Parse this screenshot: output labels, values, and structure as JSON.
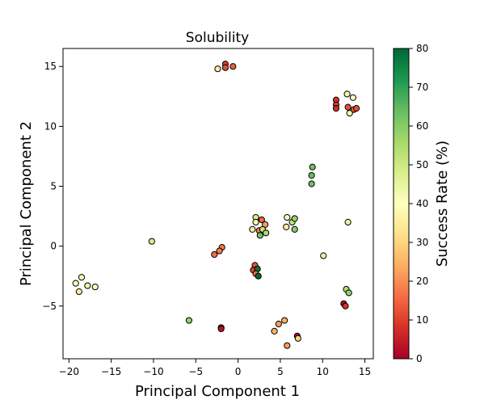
{
  "chart_data": {
    "type": "scatter",
    "title": "Solubility",
    "xlabel": "Principal Component 1",
    "ylabel": "Principal Component 2",
    "xlim": [
      -20.7,
      16.0
    ],
    "ylim": [
      -9.4,
      16.5
    ],
    "xticks": [
      -20,
      -15,
      -10,
      -5,
      0,
      5,
      10,
      15
    ],
    "yticks": [
      -5,
      0,
      5,
      10,
      15
    ],
    "grid": false,
    "legend": "none",
    "colorbar": {
      "label": "Success Rate (%)",
      "min": 0,
      "max": 80,
      "ticks": [
        0,
        10,
        20,
        30,
        40,
        50,
        60,
        70,
        80
      ],
      "colormap": "RdYlGn",
      "stops": [
        "#a50026",
        "#d73027",
        "#f46d43",
        "#fdae61",
        "#fee08b",
        "#ffffbf",
        "#d9ef8b",
        "#a6d96a",
        "#66bd63",
        "#1a9850",
        "#006837"
      ]
    },
    "points": [
      {
        "x": -1.5,
        "y": 15.2,
        "c": 10
      },
      {
        "x": -1.5,
        "y": 14.9,
        "c": 12
      },
      {
        "x": -2.4,
        "y": 14.8,
        "c": 35
      },
      {
        "x": -0.6,
        "y": 15.0,
        "c": 14
      },
      {
        "x": 11.6,
        "y": 12.2,
        "c": 8
      },
      {
        "x": 11.6,
        "y": 11.8,
        "c": 9
      },
      {
        "x": 11.6,
        "y": 11.5,
        "c": 7
      },
      {
        "x": 12.9,
        "y": 12.7,
        "c": 38
      },
      {
        "x": 13.6,
        "y": 12.4,
        "c": 40
      },
      {
        "x": 13.0,
        "y": 11.6,
        "c": 12
      },
      {
        "x": 13.2,
        "y": 11.1,
        "c": 42
      },
      {
        "x": 13.7,
        "y": 11.4,
        "c": 14
      },
      {
        "x": 14.0,
        "y": 11.5,
        "c": 12
      },
      {
        "x": 8.8,
        "y": 6.6,
        "c": 63
      },
      {
        "x": 8.7,
        "y": 5.9,
        "c": 64
      },
      {
        "x": 8.7,
        "y": 5.2,
        "c": 63
      },
      {
        "x": 2.1,
        "y": 2.4,
        "c": 48
      },
      {
        "x": 2.1,
        "y": 2.0,
        "c": 38
      },
      {
        "x": 2.8,
        "y": 2.2,
        "c": 15
      },
      {
        "x": 3.2,
        "y": 1.8,
        "c": 22
      },
      {
        "x": 1.7,
        "y": 1.4,
        "c": 35
      },
      {
        "x": 2.5,
        "y": 1.3,
        "c": 18
      },
      {
        "x": 2.9,
        "y": 1.4,
        "c": 52
      },
      {
        "x": 3.3,
        "y": 1.1,
        "c": 55
      },
      {
        "x": 2.6,
        "y": 0.9,
        "c": 62
      },
      {
        "x": 5.8,
        "y": 2.4,
        "c": 40
      },
      {
        "x": 6.4,
        "y": 2.0,
        "c": 52
      },
      {
        "x": 6.7,
        "y": 2.3,
        "c": 58
      },
      {
        "x": 5.7,
        "y": 1.6,
        "c": 36
      },
      {
        "x": 6.7,
        "y": 1.4,
        "c": 60
      },
      {
        "x": 13.0,
        "y": 2.0,
        "c": 45
      },
      {
        "x": -10.2,
        "y": 0.4,
        "c": 48
      },
      {
        "x": 10.1,
        "y": -0.8,
        "c": 45
      },
      {
        "x": -1.9,
        "y": -0.1,
        "c": 17
      },
      {
        "x": -2.2,
        "y": -0.4,
        "c": 18
      },
      {
        "x": -2.8,
        "y": -0.7,
        "c": 16
      },
      {
        "x": 2.0,
        "y": -1.6,
        "c": 12
      },
      {
        "x": 1.8,
        "y": -2.0,
        "c": 10
      },
      {
        "x": 2.3,
        "y": -1.9,
        "c": 78
      },
      {
        "x": 2.1,
        "y": -2.3,
        "c": 15
      },
      {
        "x": 2.4,
        "y": -2.5,
        "c": 80
      },
      {
        "x": -18.5,
        "y": -2.6,
        "c": 42
      },
      {
        "x": -19.2,
        "y": -3.1,
        "c": 38
      },
      {
        "x": -17.8,
        "y": -3.3,
        "c": 44
      },
      {
        "x": -16.9,
        "y": -3.4,
        "c": 40
      },
      {
        "x": -18.8,
        "y": -3.8,
        "c": 35
      },
      {
        "x": 12.8,
        "y": -3.6,
        "c": 55
      },
      {
        "x": 13.1,
        "y": -3.9,
        "c": 58
      },
      {
        "x": 12.5,
        "y": -4.8,
        "c": 2
      },
      {
        "x": 12.7,
        "y": -5.0,
        "c": 8
      },
      {
        "x": -5.8,
        "y": -6.2,
        "c": 58
      },
      {
        "x": 5.5,
        "y": -6.2,
        "c": 24
      },
      {
        "x": 4.8,
        "y": -6.5,
        "c": 22
      },
      {
        "x": 4.3,
        "y": -7.1,
        "c": 25
      },
      {
        "x": -2.0,
        "y": -6.8,
        "c": 5
      },
      {
        "x": -2.0,
        "y": -6.9,
        "c": 3
      },
      {
        "x": 7.0,
        "y": -7.5,
        "c": 2
      },
      {
        "x": 7.1,
        "y": -7.7,
        "c": 30
      },
      {
        "x": 5.8,
        "y": -8.3,
        "c": 22
      }
    ]
  }
}
